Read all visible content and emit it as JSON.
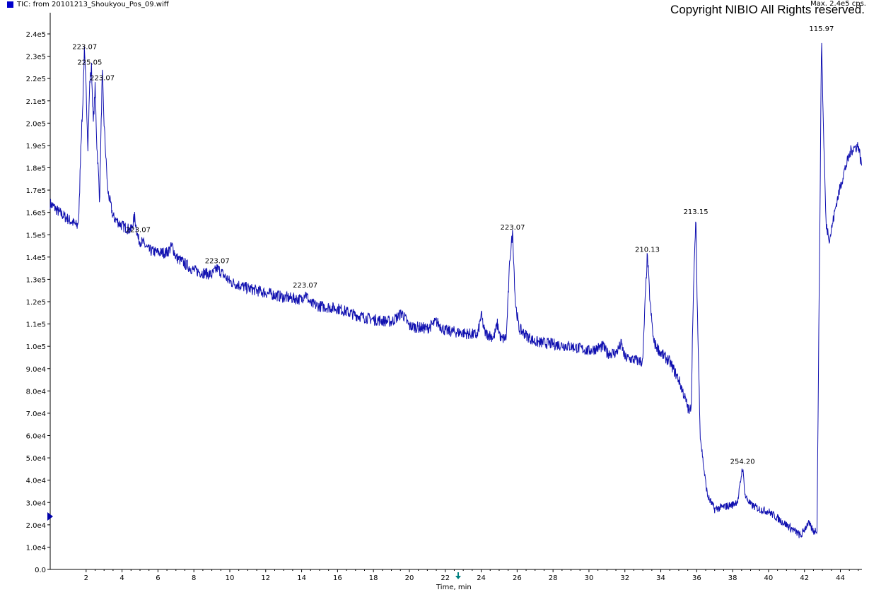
{
  "header": {
    "title": "TIC: from 20101213_Shoukyou_Pos_09.wiff",
    "max_label": "Max. 2.4e5 cps.",
    "copyright": "Copyright NIBIO All Rights reserved."
  },
  "colors": {
    "trace": "#1010b0",
    "axis": "#000000",
    "marker": "#0000aa",
    "cursor": "#008080"
  },
  "chart_data": {
    "type": "line",
    "xlabel": "Time, min",
    "ylabel": "",
    "xlim": [
      0,
      45.2
    ],
    "ylim": [
      0,
      240000
    ],
    "x_ticks": [
      "2",
      "4",
      "6",
      "8",
      "10",
      "12",
      "14",
      "16",
      "18",
      "20",
      "22",
      "24",
      "26",
      "28",
      "30",
      "32",
      "34",
      "36",
      "38",
      "40",
      "42",
      "44"
    ],
    "y_ticks": [
      "0.0",
      "1.0e4",
      "2.0e4",
      "3.0e4",
      "4.0e4",
      "5.0e4",
      "6.0e4",
      "7.0e4",
      "8.0e4",
      "9.0e4",
      "1.0e5",
      "1.1e5",
      "1.2e5",
      "1.3e5",
      "1.4e5",
      "1.5e5",
      "1.6e5",
      "1.7e5",
      "1.8e5",
      "1.9e5",
      "2.0e5",
      "2.1e5",
      "2.2e5",
      "2.3e5",
      "2.4e5"
    ],
    "series": [
      {
        "values": [
          [
            0.0,
            164000
          ],
          [
            0.5,
            160000
          ],
          [
            1.0,
            157000
          ],
          [
            1.5,
            154000
          ],
          [
            1.6,
            158000
          ],
          [
            1.7,
            190000
          ],
          [
            1.8,
            205000
          ],
          [
            1.9,
            232000
          ],
          [
            2.0,
            215000
          ],
          [
            2.1,
            190000
          ],
          [
            2.2,
            218000
          ],
          [
            2.3,
            225000
          ],
          [
            2.4,
            200000
          ],
          [
            2.5,
            216000
          ],
          [
            2.6,
            190000
          ],
          [
            2.7,
            175000
          ],
          [
            2.75,
            165000
          ],
          [
            2.8,
            185000
          ],
          [
            2.9,
            222000
          ],
          [
            3.0,
            200000
          ],
          [
            3.2,
            170000
          ],
          [
            3.5,
            158000
          ],
          [
            4.0,
            154000
          ],
          [
            4.5,
            152000
          ],
          [
            4.7,
            158000
          ],
          [
            4.9,
            148000
          ],
          [
            5.2,
            146000
          ],
          [
            5.5,
            143000
          ],
          [
            6.0,
            142000
          ],
          [
            6.5,
            142000
          ],
          [
            6.8,
            145000
          ],
          [
            7.0,
            140000
          ],
          [
            7.5,
            137000
          ],
          [
            8.0,
            134000
          ],
          [
            9.0,
            132000
          ],
          [
            9.3,
            135000
          ],
          [
            10.0,
            129000
          ],
          [
            11.0,
            126000
          ],
          [
            12.0,
            124000
          ],
          [
            13.0,
            122000
          ],
          [
            14.0,
            121000
          ],
          [
            14.2,
            124000
          ],
          [
            14.5,
            119000
          ],
          [
            15.0,
            118000
          ],
          [
            16.0,
            117000
          ],
          [
            17.0,
            114000
          ],
          [
            18.0,
            112000
          ],
          [
            19.0,
            111000
          ],
          [
            19.6,
            115000
          ],
          [
            20.0,
            109000
          ],
          [
            21.0,
            108000
          ],
          [
            21.5,
            111000
          ],
          [
            22.0,
            107000
          ],
          [
            23.0,
            106000
          ],
          [
            23.8,
            105000
          ],
          [
            24.0,
            114000
          ],
          [
            24.2,
            106000
          ],
          [
            24.7,
            104000
          ],
          [
            24.9,
            110000
          ],
          [
            25.1,
            103000
          ],
          [
            25.4,
            104000
          ],
          [
            25.6,
            140000
          ],
          [
            25.75,
            151000
          ],
          [
            25.9,
            120000
          ],
          [
            26.1,
            108000
          ],
          [
            26.5,
            105000
          ],
          [
            27.0,
            102000
          ],
          [
            28.0,
            101000
          ],
          [
            29.0,
            100000
          ],
          [
            30.0,
            98000
          ],
          [
            30.8,
            100000
          ],
          [
            31.0,
            97000
          ],
          [
            31.5,
            97000
          ],
          [
            31.8,
            101000
          ],
          [
            32.0,
            95000
          ],
          [
            33.0,
            93000
          ],
          [
            33.1,
            115000
          ],
          [
            33.25,
            141000
          ],
          [
            33.4,
            120000
          ],
          [
            33.6,
            102000
          ],
          [
            34.0,
            97000
          ],
          [
            34.5,
            93000
          ],
          [
            35.0,
            85000
          ],
          [
            35.3,
            78000
          ],
          [
            35.6,
            70000
          ],
          [
            35.7,
            75000
          ],
          [
            35.8,
            120000
          ],
          [
            35.95,
            158000
          ],
          [
            36.05,
            110000
          ],
          [
            36.2,
            60000
          ],
          [
            36.4,
            45000
          ],
          [
            36.6,
            33000
          ],
          [
            37.0,
            27000
          ],
          [
            37.5,
            28000
          ],
          [
            38.0,
            29000
          ],
          [
            38.3,
            31000
          ],
          [
            38.55,
            46000
          ],
          [
            38.7,
            33000
          ],
          [
            39.0,
            29000
          ],
          [
            39.5,
            27000
          ],
          [
            40.0,
            26000
          ],
          [
            40.5,
            23000
          ],
          [
            41.0,
            20000
          ],
          [
            41.5,
            17000
          ],
          [
            41.8,
            15000
          ],
          [
            42.2,
            21000
          ],
          [
            42.5,
            17000
          ],
          [
            42.7,
            18000
          ],
          [
            42.85,
            150000
          ],
          [
            42.95,
            240000
          ],
          [
            43.05,
            200000
          ],
          [
            43.2,
            155000
          ],
          [
            43.4,
            148000
          ],
          [
            43.8,
            165000
          ],
          [
            44.2,
            178000
          ],
          [
            44.6,
            188000
          ],
          [
            45.0,
            190000
          ],
          [
            45.2,
            180000
          ]
        ]
      }
    ],
    "annotations": [
      {
        "label": "223.07",
        "x": 1.92,
        "y": 232000
      },
      {
        "label": "225.05",
        "x": 2.2,
        "y": 225000
      },
      {
        "label": "223.07",
        "x": 2.9,
        "y": 218000
      },
      {
        "label": "223.07",
        "x": 4.9,
        "y": 150000
      },
      {
        "label": "223.07",
        "x": 9.3,
        "y": 136000
      },
      {
        "label": "223.07",
        "x": 14.2,
        "y": 125000
      },
      {
        "label": "223.07",
        "x": 25.75,
        "y": 151000
      },
      {
        "label": "210.13",
        "x": 33.25,
        "y": 141000
      },
      {
        "label": "213.15",
        "x": 35.95,
        "y": 158000
      },
      {
        "label": "254.20",
        "x": 38.55,
        "y": 46000
      },
      {
        "label": "115.97",
        "x": 42.95,
        "y": 240000
      }
    ],
    "grid": false,
    "legend": "none"
  }
}
